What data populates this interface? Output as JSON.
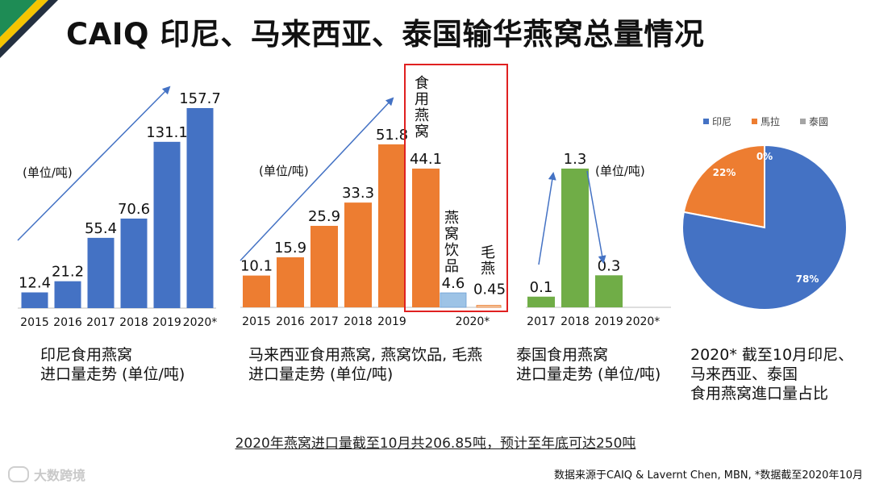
{
  "title": "CAIQ 印尼、马来西亚、泰国输华燕窝总量情况",
  "colors": {
    "indonesia": "#4472C4",
    "malaysia": "#ED7D31",
    "thailand": "#70AD47",
    "light_blue": "#9DC3E6",
    "highlight_box": "#E02020",
    "arrow": "#4472C4",
    "corner_green": "#1E8C55",
    "corner_yellow": "#F5C400",
    "corner_dark": "#243040"
  },
  "chart_data": [
    {
      "type": "bar",
      "id": "indonesia",
      "unit_label": "(单位/吨)",
      "categories": [
        "2015",
        "2016",
        "2017",
        "2018",
        "2019",
        "2020*"
      ],
      "values": [
        12.4,
        21.2,
        55.4,
        70.6,
        131.1,
        157.7
      ],
      "value_labels": [
        "12.4",
        "21.2",
        "55.4",
        "70.6",
        "131.1",
        "157.7"
      ],
      "caption": "印尼食用燕窝\n进口量走势 (单位/吨)"
    },
    {
      "type": "bar",
      "id": "malaysia",
      "unit_label": "(单位/吨)",
      "categories": [
        "2015",
        "2016",
        "2017",
        "2018",
        "2019",
        "2020*"
      ],
      "series": [
        {
          "name": "食用燕窝",
          "values": [
            10.1,
            15.9,
            25.9,
            33.3,
            51.8,
            44.1
          ],
          "value_labels": [
            "10.1",
            "15.9",
            "25.9",
            "33.3",
            "51.8",
            "44.1"
          ]
        },
        {
          "name": "燕窝饮品",
          "values": [
            null,
            null,
            null,
            null,
            null,
            4.6
          ],
          "value_labels": [
            "",
            "",
            "",
            "",
            "",
            "4.6"
          ]
        },
        {
          "name": "毛燕",
          "values": [
            null,
            null,
            null,
            null,
            null,
            0.45
          ],
          "value_labels": [
            "",
            "",
            "",
            "",
            "",
            "0.45"
          ]
        }
      ],
      "caption": "马来西亚食用燕窝, 燕窝饮品, 毛燕\n进口量走势 (单位/吨)"
    },
    {
      "type": "bar",
      "id": "thailand",
      "unit_label": "(单位/吨)",
      "categories": [
        "2017",
        "2018",
        "2019",
        "2020*"
      ],
      "values": [
        0.1,
        1.3,
        0.3,
        null
      ],
      "value_labels": [
        "0.1",
        "1.3",
        "0.3",
        ""
      ],
      "caption": "泰国食用燕窝\n进口量走势 (单位/吨)"
    },
    {
      "type": "pie",
      "id": "share",
      "legend": [
        "印尼",
        "馬拉",
        "泰國"
      ],
      "values": [
        78,
        22,
        0
      ],
      "value_labels": [
        "78%",
        "22%",
        "0%"
      ],
      "caption": "2020* 截至10月印尼、\n马来西亚、泰国\n食用燕窝進口量占比"
    }
  ],
  "summary": "2020年燕窝进口量截至10月共206.85吨，预计至年底可达250吨",
  "source": "数据来源于CAIQ & Lavernt Chen, MBN, *数据截至2020年10月",
  "watermark": "大数跨境"
}
